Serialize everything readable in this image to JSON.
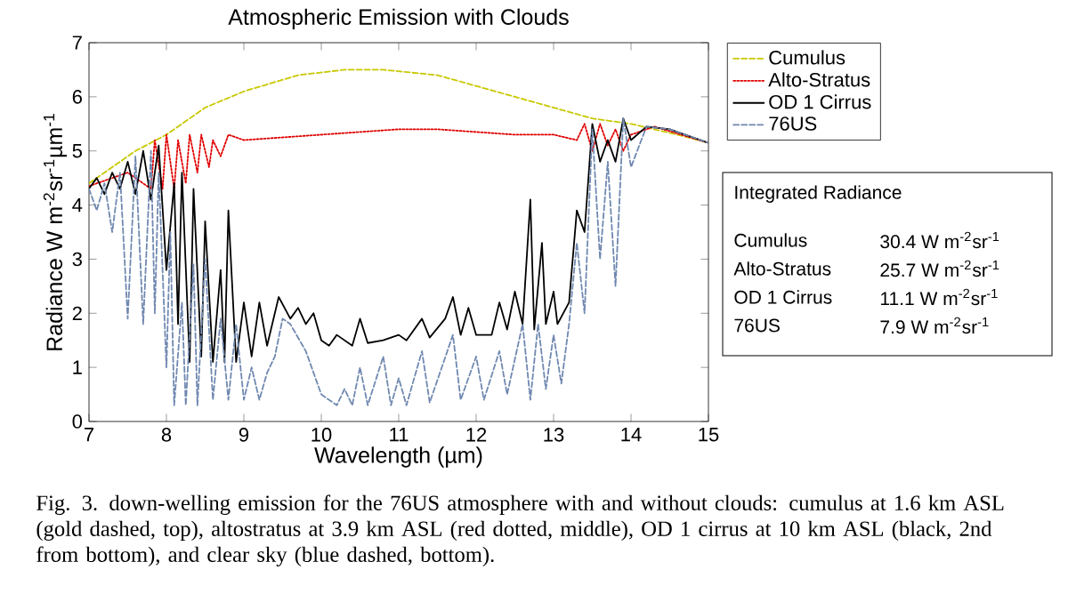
{
  "chart_data": {
    "type": "line",
    "title": "Atmospheric Emission with Clouds",
    "xlabel": "Wavelength (µm)",
    "ylabel": "Radiance W m$^{-2}$sr$^{-1}$µm$^{-1}$",
    "xlim": [
      7,
      15
    ],
    "xticks": [
      7,
      8,
      9,
      10,
      11,
      12,
      13,
      14,
      15
    ],
    "ylim": [
      0,
      7
    ],
    "yticks": [
      0,
      1,
      2,
      3,
      4,
      5,
      6,
      7
    ],
    "legend": "top right",
    "grid": false,
    "series": [
      {
        "name": "Cumulus",
        "color": "#c8c800",
        "line_style": "dashed",
        "x": [
          7.0,
          7.3,
          7.6,
          8.0,
          8.5,
          9.0,
          9.7,
          10.3,
          10.8,
          11.5,
          12.0,
          12.5,
          13.0,
          13.5,
          14.0,
          14.3,
          14.6,
          15.0
        ],
        "values": [
          4.4,
          4.7,
          5.0,
          5.3,
          5.8,
          6.1,
          6.4,
          6.5,
          6.5,
          6.4,
          6.2,
          6.0,
          5.8,
          5.6,
          5.5,
          5.4,
          5.3,
          5.15
        ]
      },
      {
        "name": "Alto-Stratus",
        "color": "#e00000",
        "line_style": "dotted",
        "x": [
          7.0,
          7.5,
          7.8,
          7.85,
          7.95,
          8.0,
          8.1,
          8.15,
          8.25,
          8.3,
          8.4,
          8.45,
          8.55,
          8.6,
          8.7,
          8.8,
          9.0,
          9.5,
          10.0,
          10.5,
          11.0,
          11.5,
          12.0,
          12.5,
          13.0,
          13.3,
          13.4,
          13.5,
          13.6,
          13.7,
          13.8,
          13.9,
          14.0,
          14.3,
          15.0
        ],
        "values": [
          4.35,
          4.6,
          4.3,
          5.2,
          4.3,
          5.3,
          4.3,
          5.2,
          4.4,
          5.3,
          4.6,
          5.3,
          4.7,
          5.2,
          4.9,
          5.3,
          5.2,
          5.25,
          5.3,
          5.35,
          5.4,
          5.4,
          5.35,
          5.3,
          5.3,
          5.2,
          5.5,
          5.0,
          5.5,
          5.1,
          5.4,
          5.0,
          5.3,
          5.45,
          5.15
        ]
      },
      {
        "name": "OD 1 Cirrus",
        "color": "#000000",
        "line_style": "solid",
        "x": [
          7.0,
          7.1,
          7.2,
          7.3,
          7.4,
          7.5,
          7.6,
          7.7,
          7.8,
          7.9,
          8.0,
          8.1,
          8.15,
          8.2,
          8.3,
          8.35,
          8.45,
          8.5,
          8.6,
          8.7,
          8.75,
          8.8,
          8.9,
          9.0,
          9.1,
          9.2,
          9.3,
          9.45,
          9.6,
          9.7,
          9.8,
          9.9,
          10.0,
          10.1,
          10.2,
          10.4,
          10.5,
          10.6,
          10.8,
          11.0,
          11.1,
          11.3,
          11.4,
          11.6,
          11.7,
          11.8,
          11.9,
          12.0,
          12.2,
          12.3,
          12.4,
          12.5,
          12.6,
          12.7,
          12.75,
          12.85,
          12.9,
          13.0,
          13.05,
          13.2,
          13.3,
          13.4,
          13.5,
          13.6,
          13.7,
          13.8,
          13.9,
          14.0,
          14.2,
          14.5,
          15.0
        ],
        "values": [
          4.3,
          4.5,
          4.2,
          4.6,
          4.3,
          4.8,
          4.2,
          5.0,
          4.1,
          5.1,
          2.8,
          4.4,
          1.8,
          4.6,
          1.1,
          4.3,
          1.2,
          3.7,
          1.1,
          2.8,
          1.1,
          3.9,
          1.1,
          2.2,
          1.2,
          2.2,
          1.4,
          2.3,
          1.9,
          2.1,
          1.8,
          2.0,
          1.5,
          1.4,
          1.6,
          1.4,
          1.9,
          1.45,
          1.5,
          1.6,
          1.5,
          1.9,
          1.55,
          1.9,
          2.3,
          1.6,
          2.1,
          1.6,
          1.6,
          2.2,
          1.7,
          2.4,
          1.8,
          4.1,
          1.7,
          3.3,
          1.8,
          2.4,
          1.8,
          2.2,
          3.9,
          3.5,
          5.5,
          4.8,
          5.2,
          4.8,
          5.6,
          5.2,
          5.45,
          5.4,
          5.15
        ]
      },
      {
        "name": "76US",
        "color": "#7088b0",
        "line_style": "dashed",
        "x": [
          7.0,
          7.1,
          7.2,
          7.3,
          7.4,
          7.5,
          7.6,
          7.7,
          7.8,
          7.85,
          7.9,
          8.0,
          8.05,
          8.1,
          8.2,
          8.25,
          8.35,
          8.4,
          8.5,
          8.6,
          8.7,
          8.8,
          8.9,
          9.0,
          9.1,
          9.2,
          9.3,
          9.4,
          9.5,
          9.6,
          9.8,
          10.0,
          10.2,
          10.3,
          10.4,
          10.5,
          10.6,
          10.8,
          10.9,
          11.0,
          11.1,
          11.3,
          11.4,
          11.7,
          11.8,
          12.0,
          12.1,
          12.3,
          12.4,
          12.6,
          12.7,
          12.8,
          12.9,
          13.0,
          13.1,
          13.2,
          13.3,
          13.4,
          13.5,
          13.6,
          13.7,
          13.8,
          13.9,
          14.0,
          14.2,
          14.5,
          15.0
        ],
        "values": [
          4.3,
          3.9,
          4.4,
          3.5,
          4.6,
          1.9,
          4.9,
          1.8,
          5.0,
          2.0,
          4.6,
          1.0,
          3.5,
          0.3,
          2.2,
          0.3,
          2.9,
          0.3,
          3.0,
          0.4,
          1.9,
          0.4,
          1.8,
          0.4,
          1.0,
          0.4,
          0.9,
          1.2,
          1.9,
          1.8,
          1.3,
          0.5,
          0.3,
          0.6,
          0.3,
          1.0,
          0.3,
          1.2,
          0.3,
          0.8,
          0.3,
          1.3,
          0.35,
          1.6,
          0.4,
          1.2,
          0.4,
          1.3,
          0.5,
          1.8,
          0.4,
          1.8,
          0.6,
          1.6,
          0.7,
          1.8,
          3.3,
          2.0,
          5.4,
          3.0,
          4.8,
          2.5,
          5.6,
          4.7,
          5.45,
          5.4,
          5.15
        ]
      }
    ],
    "annotations": [
      "Integrated Radiance",
      "Cumulus",
      "30.4 W m$^{-2}$sr$^{-1}$",
      "Alto-Stratus",
      "25.7 W m$^{-2}$sr$^{-1}$",
      "OD 1 Cirrus",
      "11.1 W m$^{-2}$sr$^{-1}$",
      "76US",
      "7.9 W m$^{-2}$sr$^{-1}$",
      "Fig. 3. down-welling emission for the 76US atmosphere with and without clouds: cumulus at 1.6 km ASL (gold dashed, top), altostratus at 3.9 km ASL (red dotted, middle), OD 1 cirrus at 10 km ASL (black, 2nd from bottom), and clear sky (blue dashed, bottom)."
    ]
  }
}
